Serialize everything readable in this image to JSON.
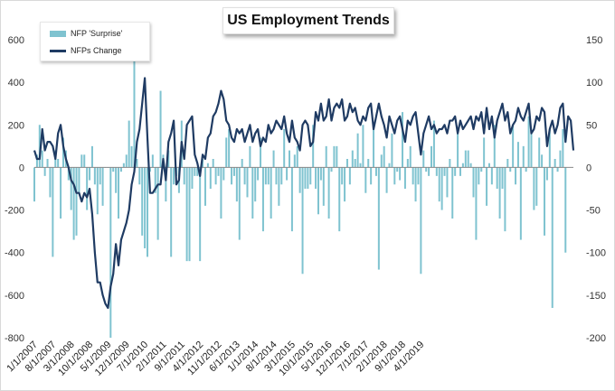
{
  "title": "US Employment Trends",
  "colors": {
    "bars": "#7fc3d0",
    "line": "#1f3b63",
    "axis": "#888888"
  },
  "chart_data": {
    "type": "bar",
    "title": "US Employment Trends",
    "legend_position": "top-left",
    "grid": false,
    "series": [
      {
        "name": "NFP 'Surprise'",
        "type": "bar",
        "axis": "right"
      },
      {
        "name": "NFPs Change",
        "type": "line",
        "axis": "left"
      }
    ],
    "left_axis": {
      "min": -800,
      "max": 600,
      "ticks": [
        600,
        400,
        200,
        0,
        -200,
        -400,
        -600,
        -800
      ]
    },
    "right_axis": {
      "min": -200,
      "max": 150,
      "ticks": [
        150,
        100,
        50,
        0,
        -50,
        -100,
        -150,
        -200
      ]
    },
    "x_tick_labels": [
      "1/1/2007",
      "8/1/2007",
      "3/1/2008",
      "10/1/2008",
      "5/1/2009",
      "12/1/2009",
      "7/1/2010",
      "2/1/2011",
      "9/1/2011",
      "4/1/2012",
      "11/1/2012",
      "6/1/2013",
      "1/1/2014",
      "8/1/2014",
      "3/1/2015",
      "10/1/2015",
      "5/1/2016",
      "12/1/2016",
      "7/1/2017",
      "2/1/2018",
      "9/1/2018",
      "4/1/2019"
    ],
    "x_start": "2007-01",
    "x_end": "2019-07",
    "surprise_values": [
      -40,
      15,
      50,
      20,
      -10,
      10,
      -35,
      -105,
      20,
      10,
      -60,
      35,
      20,
      -15,
      -50,
      -85,
      -80,
      -30,
      15,
      15,
      -50,
      -15,
      25,
      -20,
      -55,
      -20,
      -45,
      0,
      0,
      -200,
      -5,
      -30,
      -60,
      -5,
      5,
      15,
      55,
      25,
      160,
      10,
      -20,
      -80,
      -95,
      -105,
      -5,
      15,
      -30,
      -85,
      90,
      15,
      -40,
      20,
      -105,
      -20,
      -10,
      -30,
      55,
      -20,
      -110,
      -110,
      -25,
      -10,
      -10,
      -110,
      10,
      -45,
      5,
      -25,
      10,
      -20,
      -10,
      -60,
      -15,
      35,
      45,
      -20,
      -10,
      -40,
      -85,
      10,
      -20,
      -35,
      25,
      -60,
      -40,
      -15,
      35,
      -75,
      -20,
      -20,
      -60,
      20,
      -20,
      -45,
      -20,
      45,
      -15,
      20,
      -75,
      15,
      25,
      -30,
      -125,
      -25,
      -25,
      -20,
      50,
      -25,
      -55,
      -15,
      -45,
      25,
      -60,
      -5,
      25,
      25,
      -75,
      -20,
      -40,
      10,
      -20,
      20,
      10,
      40,
      5,
      50,
      -30,
      10,
      -20,
      45,
      -10,
      -120,
      15,
      25,
      -30,
      5,
      40,
      -20,
      -5,
      -15,
      65,
      -25,
      10,
      25,
      -20,
      -40,
      -20,
      -125,
      20,
      -5,
      -10,
      25,
      55,
      -10,
      -40,
      -50,
      -10,
      -35,
      10,
      -60,
      -10,
      40,
      -10,
      5,
      20,
      20,
      5,
      -35,
      -85,
      -20,
      -5,
      35,
      -45,
      5,
      -20,
      50,
      -25,
      -60,
      -25,
      -75,
      10,
      -5,
      50,
      -20,
      30,
      -85,
      25,
      -5,
      60,
      40,
      -50,
      -45,
      35,
      15,
      -80,
      -15,
      45,
      -165,
      10,
      -5,
      20,
      45,
      -100
    ],
    "change_values": [
      20,
      10,
      10,
      45,
      20,
      30,
      30,
      25,
      10,
      40,
      50,
      25,
      10,
      0,
      -15,
      -20,
      -30,
      -30,
      -40,
      -30,
      -35,
      -25,
      -55,
      -100,
      -135,
      -135,
      -150,
      -160,
      -165,
      -140,
      -125,
      -90,
      -115,
      -85,
      -75,
      -65,
      -50,
      -20,
      -5,
      30,
      45,
      75,
      105,
      35,
      -30,
      -30,
      -25,
      -20,
      -20,
      10,
      -15,
      30,
      40,
      55,
      -20,
      -15,
      30,
      10,
      50,
      55,
      60,
      15,
      5,
      -10,
      15,
      10,
      35,
      40,
      60,
      65,
      75,
      90,
      80,
      55,
      50,
      35,
      30,
      45,
      40,
      45,
      30,
      40,
      50,
      30,
      40,
      45,
      25,
      35,
      30,
      50,
      40,
      45,
      55,
      50,
      45,
      60,
      40,
      30,
      55,
      35,
      30,
      20,
      50,
      55,
      50,
      25,
      30,
      65,
      55,
      75,
      55,
      60,
      80,
      55,
      70,
      75,
      70,
      80,
      55,
      60,
      75,
      65,
      70,
      55,
      50,
      60,
      55,
      70,
      75,
      45,
      60,
      75,
      60,
      50,
      35,
      60,
      50,
      40,
      55,
      60,
      45,
      30,
      55,
      50,
      60,
      65,
      40,
      15,
      40,
      50,
      60,
      45,
      50,
      40,
      45,
      45,
      50,
      40,
      55,
      55,
      60,
      40,
      55,
      45,
      50,
      55,
      60,
      45,
      60,
      55,
      65,
      40,
      70,
      45,
      60,
      35,
      55,
      65,
      75,
      55,
      65,
      40,
      50,
      55,
      70,
      60,
      55,
      65,
      75,
      40,
      45,
      60,
      55,
      70,
      65,
      25,
      45,
      55,
      40,
      50,
      70,
      75,
      30,
      60,
      55,
      20
    ]
  }
}
